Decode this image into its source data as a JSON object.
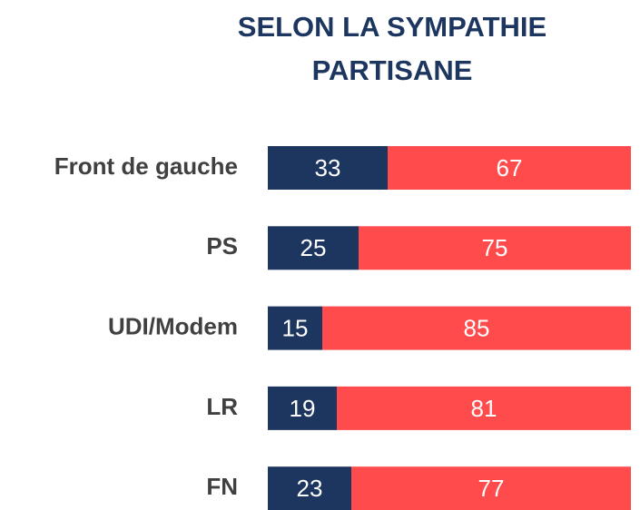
{
  "chart_data": {
    "type": "stacked-bar-horizontal",
    "title": "SELON LA SYMPATHIE PARTISANE",
    "categories": [
      "Front de gauche",
      "PS",
      "UDI/Modem",
      "LR",
      "FN"
    ],
    "series": [
      {
        "color": "#1d3660",
        "values": [
          33,
          25,
          15,
          19,
          23
        ]
      },
      {
        "color": "#ff4b4b",
        "values": [
          67,
          75,
          85,
          81,
          77
        ]
      }
    ]
  }
}
